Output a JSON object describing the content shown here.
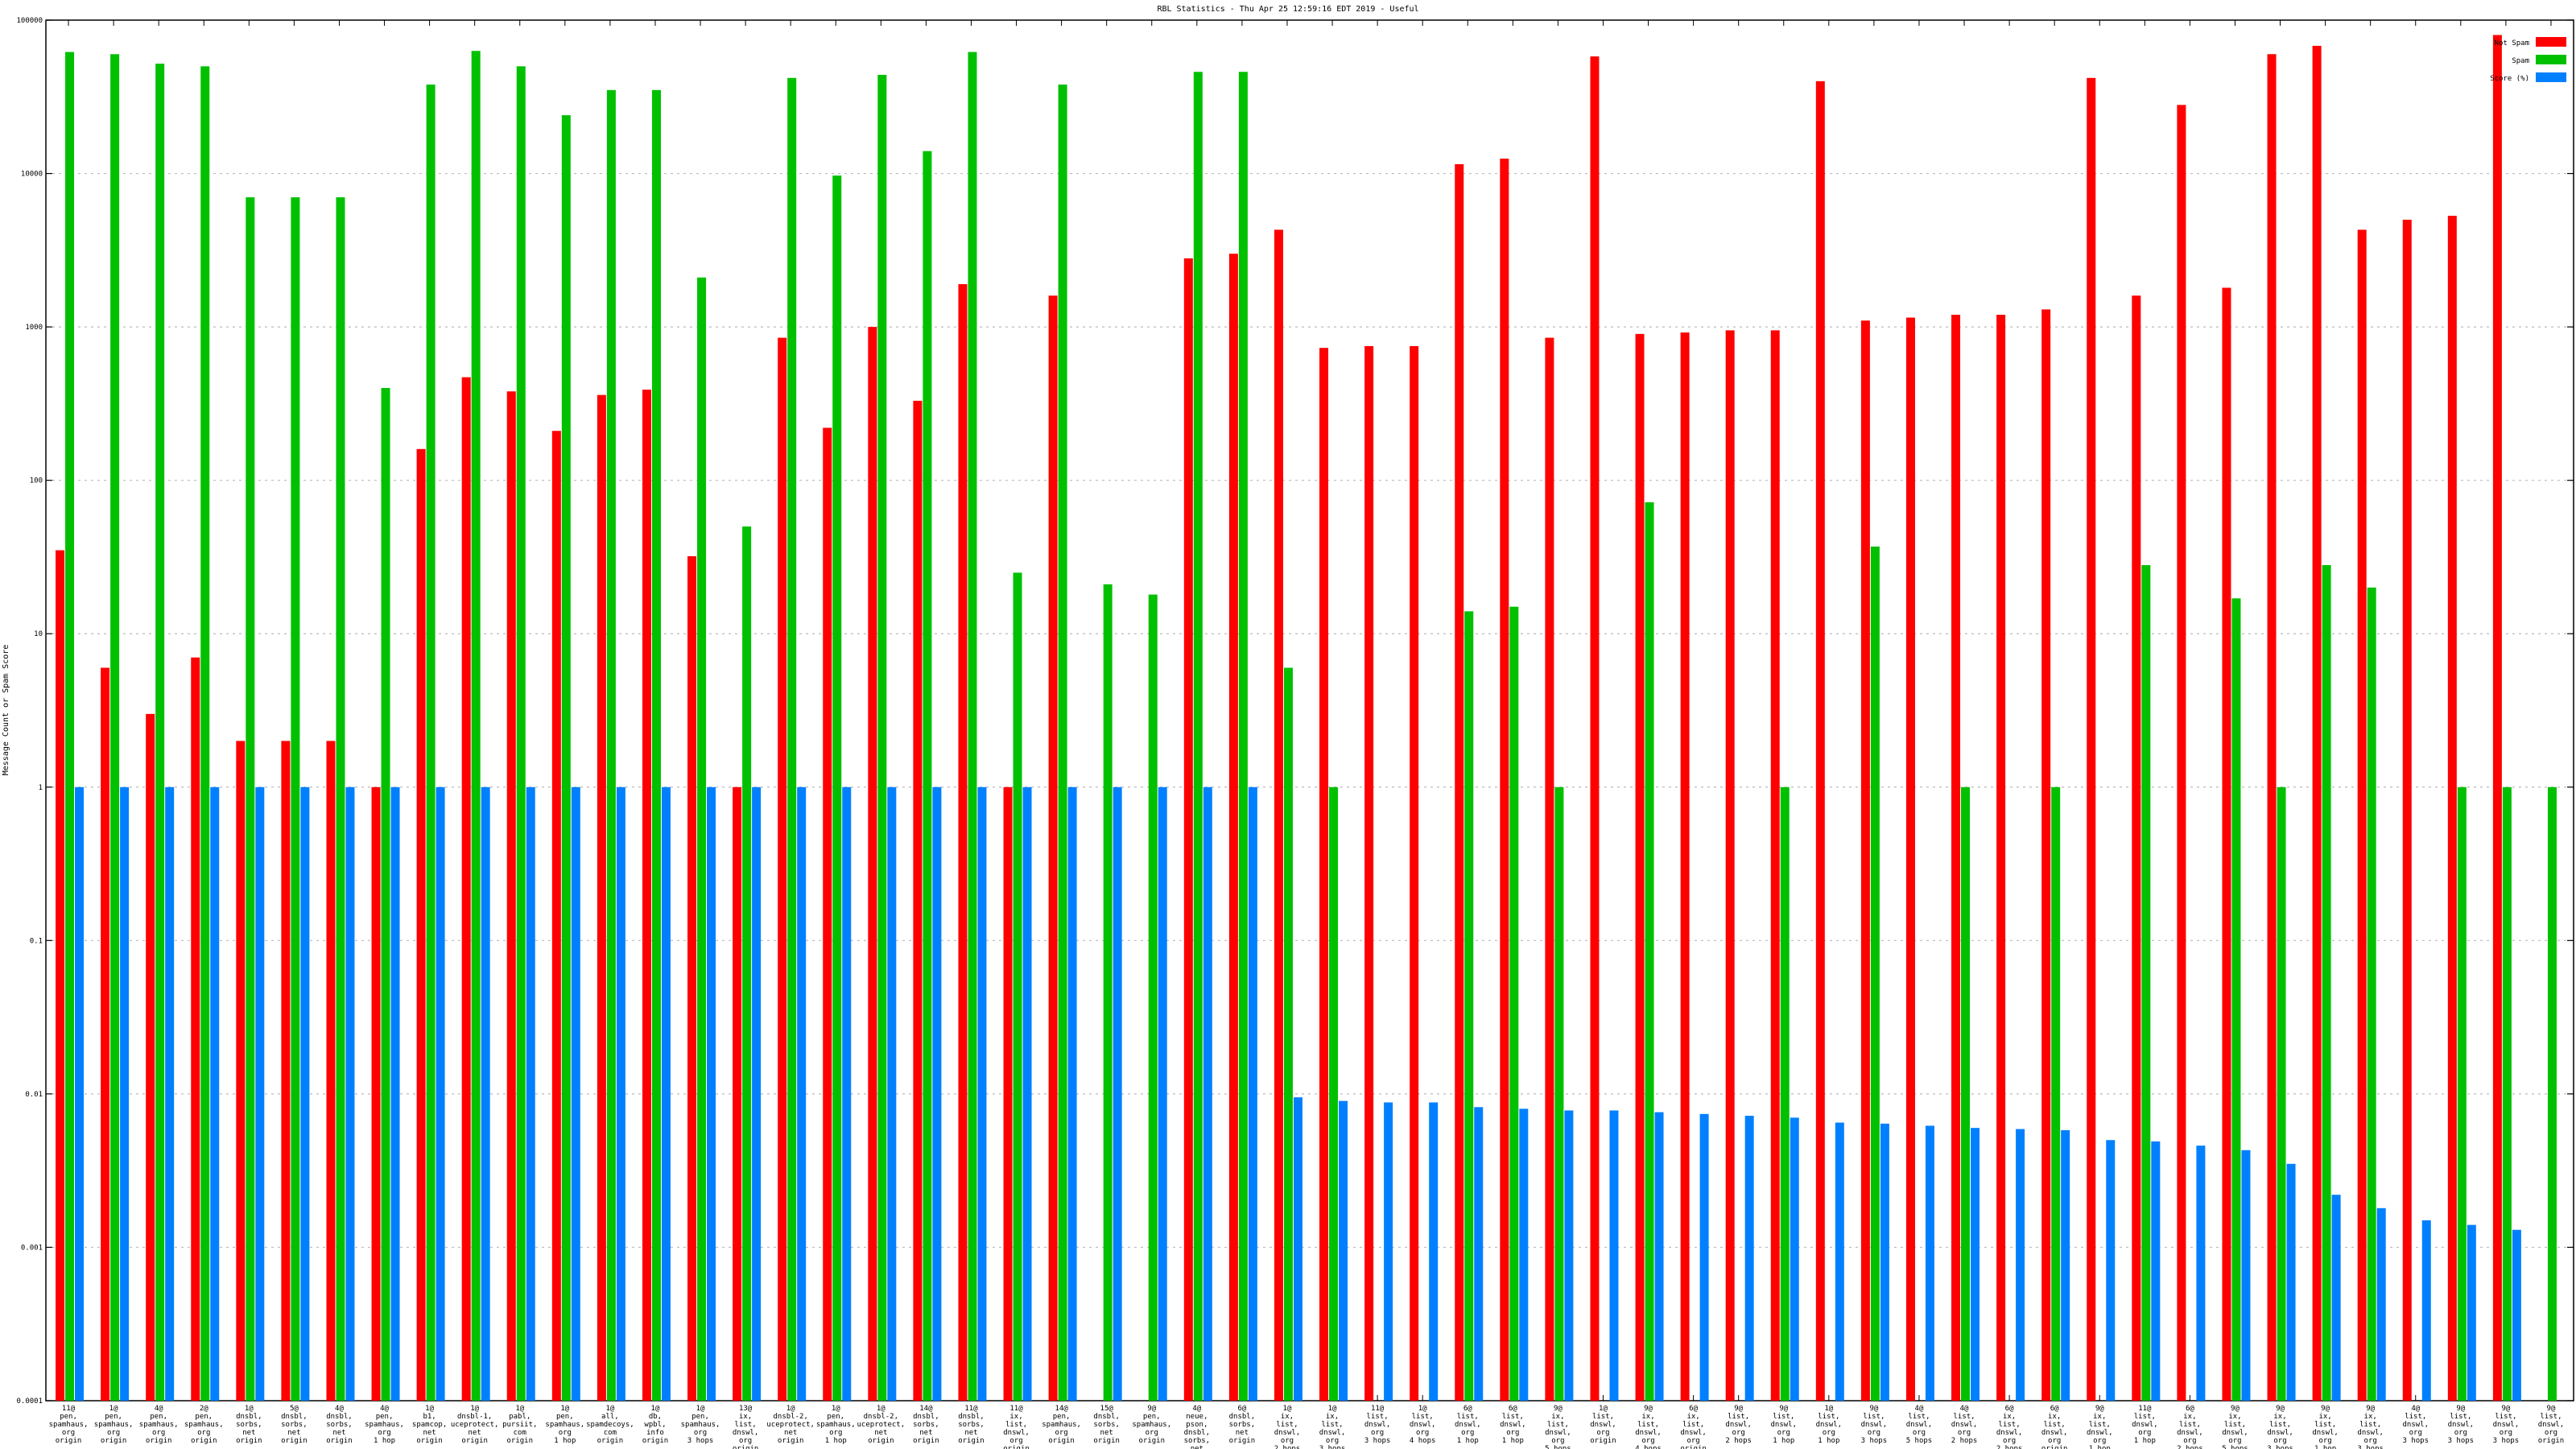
{
  "chart_data": {
    "type": "bar",
    "title": "RBL Statistics - Thu Apr 25 12:59:16 EDT 2019 - Useful",
    "ylabel": "Message Count or Spam Score",
    "xlabel": "",
    "yscale": "log",
    "ylim": [
      0.0001,
      100000
    ],
    "yticks": [
      "0.0001",
      "0.001",
      "0.01",
      "0.1",
      "1",
      "10",
      "100",
      "1000",
      "10000",
      "100000"
    ],
    "grid": true,
    "legend_position": "top-right",
    "colors": {
      "Not Spam": "#ff0000",
      "Spam": "#00c000",
      "Score (%)": "#0080ff"
    },
    "categories": [
      [
        "11@",
        "pen,",
        "spamhaus,",
        "org",
        "origin"
      ],
      [
        "1@",
        "pen,",
        "spamhaus,",
        "org",
        "origin"
      ],
      [
        "4@",
        "pen,",
        "spamhaus,",
        "org",
        "origin"
      ],
      [
        "2@",
        "pen,",
        "spamhaus,",
        "org",
        "origin"
      ],
      [
        "1@",
        "dnsbl,",
        "sorbs,",
        "net",
        "origin"
      ],
      [
        "5@",
        "dnsbl,",
        "sorbs,",
        "net",
        "origin"
      ],
      [
        "4@",
        "dnsbl,",
        "sorbs,",
        "net",
        "origin"
      ],
      [
        "4@",
        "pen,",
        "spamhaus,",
        "org",
        "1 hop"
      ],
      [
        "1@",
        "b1,",
        "spamcop,",
        "net",
        "origin"
      ],
      [
        "1@",
        "dnsbl-1,",
        "uceprotect,",
        "net",
        "origin"
      ],
      [
        "1@",
        "pabl,",
        "pursiit,",
        "com",
        "origin"
      ],
      [
        "1@",
        "pen,",
        "spamhaus,",
        "org",
        "1 hop"
      ],
      [
        "1@",
        "all,",
        "spamdecoys,",
        "com",
        "origin"
      ],
      [
        "1@",
        "db,",
        "wpbl,",
        "info",
        "origin"
      ],
      [
        "1@",
        "pen,",
        "spamhaus,",
        "org",
        "3 hops"
      ],
      [
        "13@",
        "ix,",
        "list,",
        "dnswl,",
        "org",
        "origin"
      ],
      [
        "1@",
        "dnsbl-2,",
        "uceprotect,",
        "net",
        "origin"
      ],
      [
        "1@",
        "pen,",
        "spamhaus,",
        "org",
        "1 hop"
      ],
      [
        "1@",
        "dnsbl-2,",
        "uceprotect,",
        "net",
        "origin"
      ],
      [
        "14@",
        "dnsbl,",
        "sorbs,",
        "net",
        "origin"
      ],
      [
        "11@",
        "dnsbl,",
        "sorbs,",
        "net",
        "origin"
      ],
      [
        "11@",
        "ix,",
        "list,",
        "dnswl,",
        "org",
        "origin"
      ],
      [
        "14@",
        "pen,",
        "spamhaus,",
        "org",
        "origin"
      ],
      [
        "15@",
        "dnsbl,",
        "sorbs,",
        "net",
        "origin"
      ],
      [
        "9@",
        "pen,",
        "spamhaus,",
        "org",
        "origin"
      ],
      [
        "4@",
        "neue,",
        "pson,",
        "dnsbl,",
        "sorbs,",
        "net",
        "origin"
      ],
      [
        "6@",
        "dnsbl,",
        "sorbs,",
        "net",
        "origin"
      ],
      [
        "1@",
        "ix,",
        "list,",
        "dnswl,",
        "org",
        "2 hops"
      ],
      [
        "1@",
        "ix,",
        "list,",
        "dnswl,",
        "org",
        "3 hops"
      ],
      [
        "11@",
        "list,",
        "dnswl,",
        "org",
        "3 hops"
      ],
      [
        "1@",
        "list,",
        "dnswl,",
        "org",
        "4 hops"
      ],
      [
        "6@",
        "list,",
        "dnswl,",
        "org",
        "1 hop"
      ],
      [
        "6@",
        "list,",
        "dnswl,",
        "org",
        "1 hop"
      ],
      [
        "9@",
        "ix,",
        "list,",
        "dnswl,",
        "org",
        "5 hops"
      ],
      [
        "1@",
        "list,",
        "dnswl,",
        "org",
        "origin"
      ],
      [
        "9@",
        "ix,",
        "list,",
        "dnswl,",
        "org",
        "4 hops"
      ],
      [
        "6@",
        "ix,",
        "list,",
        "dnswl,",
        "org",
        "origin"
      ],
      [
        "9@",
        "list,",
        "dnswl,",
        "org",
        "2 hops"
      ],
      [
        "9@",
        "list,",
        "dnswl,",
        "org",
        "1 hop"
      ],
      [
        "1@",
        "list,",
        "dnswl,",
        "org",
        "1 hop"
      ],
      [
        "9@",
        "list,",
        "dnswl,",
        "org",
        "3 hops"
      ],
      [
        "4@",
        "list,",
        "dnswl,",
        "org",
        "5 hops"
      ],
      [
        "4@",
        "list,",
        "dnswl,",
        "org",
        "2 hops"
      ],
      [
        "6@",
        "ix,",
        "list,",
        "dnswl,",
        "org",
        "2 hops"
      ],
      [
        "6@",
        "ix,",
        "list,",
        "dnswl,",
        "org",
        "origin"
      ],
      [
        "9@",
        "ix,",
        "list,",
        "dnswl,",
        "org",
        "1 hop"
      ],
      [
        "11@",
        "list,",
        "dnswl,",
        "org",
        "1 hop"
      ],
      [
        "6@",
        "ix,",
        "list,",
        "dnswl,",
        "org",
        "2 hops"
      ],
      [
        "9@",
        "ix,",
        "list,",
        "dnswl,",
        "org",
        "5 hops"
      ],
      [
        "9@",
        "ix,",
        "list,",
        "dnswl,",
        "org",
        "3 hops"
      ],
      [
        "9@",
        "ix,",
        "list,",
        "dnswl,",
        "org",
        "1 hop"
      ],
      [
        "9@",
        "ix,",
        "list,",
        "dnswl,",
        "org",
        "3 hops"
      ],
      [
        "4@",
        "list,",
        "dnswl,",
        "org",
        "3 hops"
      ],
      [
        "9@",
        "list,",
        "dnswl,",
        "org",
        "3 hops"
      ],
      [
        "9@",
        "list,",
        "dnswl,",
        "org",
        "3 hops"
      ],
      [
        "9@",
        "list,",
        "dnswl,",
        "org",
        "origin"
      ]
    ],
    "series": [
      {
        "name": "Not Spam",
        "values": [
          35,
          6,
          3,
          7,
          2,
          2,
          2,
          1,
          160,
          470,
          380,
          210,
          360,
          390,
          32,
          1,
          850,
          220,
          1000,
          330,
          1900,
          1,
          1600,
          null,
          null,
          2800,
          3000,
          4300,
          730,
          750,
          750,
          11500,
          12500,
          850,
          58000,
          900,
          920,
          950,
          950,
          40000,
          1100,
          1150,
          1200,
          1200,
          1300,
          42000,
          1600,
          28000,
          1800,
          60000,
          68000,
          4300,
          5000,
          5300,
          80000,
          null
        ]
      },
      {
        "name": "Spam",
        "values": [
          62000,
          60000,
          52000,
          50000,
          7000,
          7000,
          7000,
          400,
          38000,
          63000,
          50000,
          24000,
          35000,
          35000,
          2100,
          50,
          42000,
          9700,
          44000,
          14000,
          62000,
          25,
          38000,
          21,
          18,
          46000,
          46000,
          6,
          1,
          null,
          null,
          14,
          15,
          1,
          null,
          72,
          null,
          null,
          1,
          null,
          37,
          null,
          1,
          null,
          1,
          null,
          28,
          null,
          17,
          1,
          28,
          20,
          null,
          1,
          1,
          1
        ]
      },
      {
        "name": "Score (%)",
        "values": [
          1,
          1,
          1,
          1,
          1,
          1,
          1,
          1,
          1,
          1,
          1,
          1,
          1,
          1,
          1,
          1,
          1,
          1,
          1,
          1,
          1,
          1,
          1,
          1,
          1,
          1,
          1,
          0.0095,
          0.009,
          0.0088,
          0.0088,
          0.0082,
          0.008,
          0.0078,
          0.0078,
          0.0076,
          0.0074,
          0.0072,
          0.007,
          0.0065,
          0.0064,
          0.0062,
          0.006,
          0.0059,
          0.0058,
          0.005,
          0.0049,
          0.0046,
          0.0043,
          0.0035,
          0.0022,
          0.0018,
          0.0015,
          0.0014,
          0.0013,
          null
        ]
      }
    ]
  }
}
